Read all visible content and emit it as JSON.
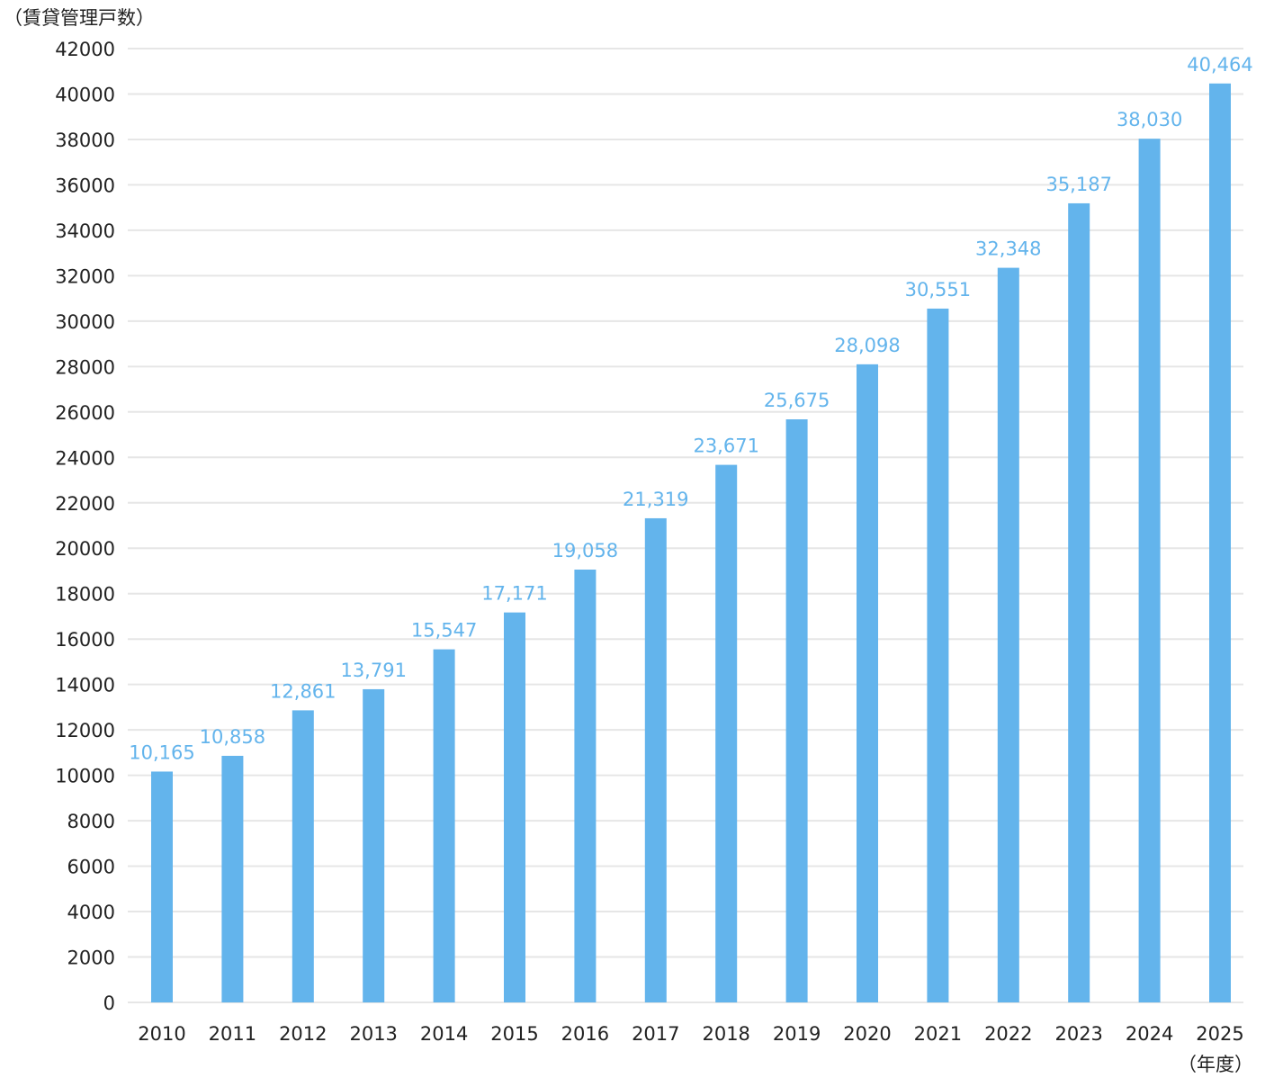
{
  "chart_data": {
    "type": "bar",
    "ylabel": "（賃貸管理戸数）",
    "xlabel": "（年度）",
    "categories": [
      "2010",
      "2011",
      "2012",
      "2013",
      "2014",
      "2015",
      "2016",
      "2017",
      "2018",
      "2019",
      "2020",
      "2021",
      "2022",
      "2023",
      "2024",
      "2025"
    ],
    "values": [
      10165,
      10858,
      12861,
      13791,
      15547,
      17171,
      19058,
      21319,
      23671,
      25675,
      28098,
      30551,
      32348,
      35187,
      38030,
      40464
    ],
    "value_labels": [
      "10,165",
      "10,858",
      "12,861",
      "13,791",
      "15,547",
      "17,171",
      "19,058",
      "21,319",
      "23,671",
      "25,675",
      "28,098",
      "30,551",
      "32,348",
      "35,187",
      "38,030",
      "40,464"
    ],
    "ylim": [
      0,
      42000
    ],
    "yticks": [
      0,
      2000,
      4000,
      6000,
      8000,
      10000,
      12000,
      14000,
      16000,
      18000,
      20000,
      22000,
      24000,
      26000,
      28000,
      30000,
      32000,
      34000,
      36000,
      38000,
      40000,
      42000
    ],
    "grid": true,
    "legend": "none",
    "colors": {
      "bar": "#63b4ec",
      "data_label": "#63b4ec",
      "grid": "#e6e6e6",
      "text": "#222222"
    }
  }
}
